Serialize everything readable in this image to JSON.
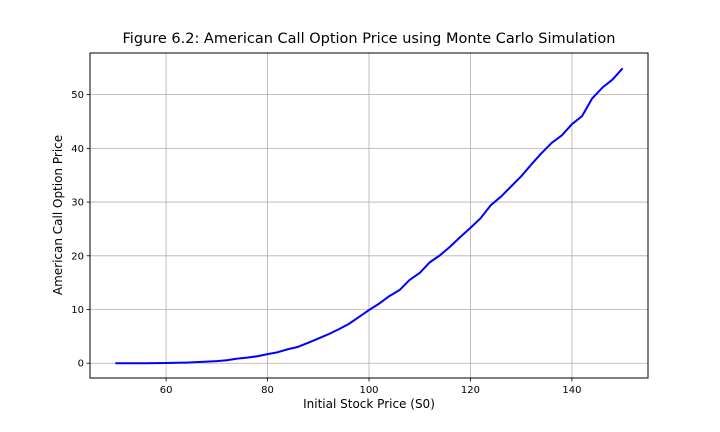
{
  "chart_data": {
    "type": "line",
    "title": "Figure 6.2: American Call Option Price using Monte Carlo Simulation",
    "xlabel": "Initial Stock Price (S0)",
    "ylabel": "American Call Option Price",
    "xlim": [
      45.0,
      155.0
    ],
    "ylim": [
      -2.75,
      57.75
    ],
    "x_ticks": [
      60,
      80,
      100,
      120,
      140
    ],
    "y_ticks": [
      0,
      10,
      20,
      30,
      40,
      50
    ],
    "grid": true,
    "series": [
      {
        "color": "#0000ff",
        "x": [
          50,
          52,
          54,
          56,
          58,
          60,
          62,
          64,
          66,
          68,
          70,
          72,
          74,
          76,
          78,
          80,
          82,
          84,
          86,
          88,
          90,
          92,
          94,
          96,
          98,
          100,
          102,
          104,
          106,
          108,
          110,
          112,
          114,
          116,
          118,
          120,
          122,
          124,
          126,
          128,
          130,
          132,
          134,
          136,
          138,
          140,
          142,
          144,
          146,
          148,
          150
        ],
        "y": [
          0.0,
          0.0,
          0.0,
          0.0,
          0.02,
          0.05,
          0.08,
          0.12,
          0.2,
          0.3,
          0.4,
          0.55,
          0.85,
          1.05,
          1.3,
          1.7,
          2.05,
          2.6,
          3.05,
          3.8,
          4.6,
          5.4,
          6.3,
          7.3,
          8.6,
          9.9,
          11.1,
          12.5,
          13.6,
          15.5,
          16.8,
          18.8,
          20.1,
          21.7,
          23.5,
          25.2,
          27.0,
          29.4,
          31.0,
          32.9,
          34.8,
          37.0,
          39.1,
          41.0,
          42.4,
          44.5,
          46.0,
          49.3,
          51.3,
          52.8,
          54.9
        ]
      }
    ]
  }
}
